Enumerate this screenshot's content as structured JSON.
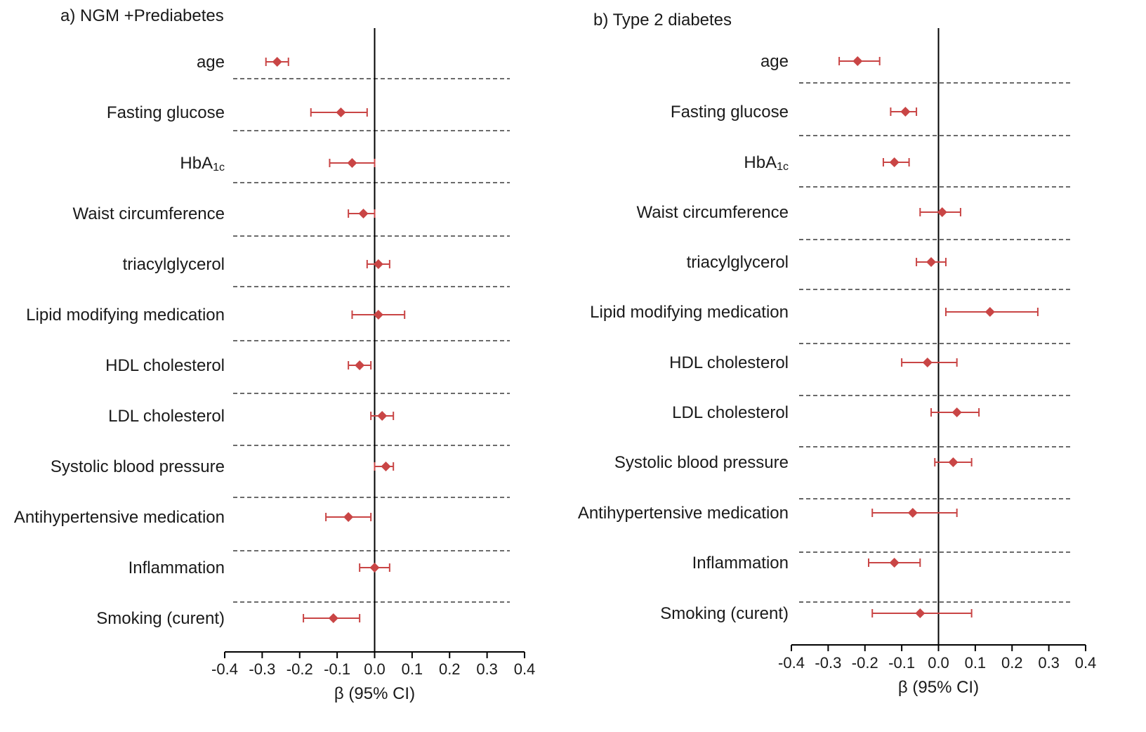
{
  "colors": {
    "marker": "#c94545",
    "axis": "#000000",
    "separator": "#3a3a3a",
    "text": "#1a1a1a"
  },
  "chart_data": [
    {
      "type": "forest",
      "title": "a) NGM +Prediabetes",
      "xlabel": "β (95% CI)",
      "xlim": [
        -0.4,
        0.4
      ],
      "xticks": [
        -0.4,
        -0.3,
        -0.2,
        -0.1,
        0.0,
        0.1,
        0.2,
        0.3,
        0.4
      ],
      "xtick_labels": [
        "-0.4",
        "-0.3",
        "-0.2",
        "-0.1",
        "0.0",
        "0.1",
        "0.2",
        "0.3",
        "0.4"
      ],
      "reference_line": 0,
      "rows": [
        {
          "label": "age",
          "beta": -0.26,
          "ci_low": -0.29,
          "ci_high": -0.23
        },
        {
          "label": "Fasting glucose",
          "beta": -0.09,
          "ci_low": -0.17,
          "ci_high": -0.02
        },
        {
          "label": "HbA",
          "label_sub": "1c",
          "beta": -0.06,
          "ci_low": -0.12,
          "ci_high": 0.0
        },
        {
          "label": "Waist circumference",
          "beta": -0.03,
          "ci_low": -0.07,
          "ci_high": 0.0
        },
        {
          "label": "triacylglycerol",
          "beta": 0.01,
          "ci_low": -0.02,
          "ci_high": 0.04
        },
        {
          "label": "Lipid modifying medication",
          "beta": 0.01,
          "ci_low": -0.06,
          "ci_high": 0.08
        },
        {
          "label": "HDL cholesterol",
          "beta": -0.04,
          "ci_low": -0.07,
          "ci_high": -0.01
        },
        {
          "label": "LDL cholesterol",
          "beta": 0.02,
          "ci_low": -0.01,
          "ci_high": 0.05
        },
        {
          "label": "Systolic blood pressure",
          "beta": 0.03,
          "ci_low": 0.0,
          "ci_high": 0.05
        },
        {
          "label": "Antihypertensive medication",
          "beta": -0.07,
          "ci_low": -0.13,
          "ci_high": -0.01
        },
        {
          "label": "Inflammation",
          "beta": 0.0,
          "ci_low": -0.04,
          "ci_high": 0.04
        },
        {
          "label": "Smoking (curent)",
          "beta": -0.11,
          "ci_low": -0.19,
          "ci_high": -0.04
        }
      ]
    },
    {
      "type": "forest",
      "title": "b) Type 2 diabetes",
      "xlabel": "β (95% CI)",
      "xlim": [
        -0.4,
        0.4
      ],
      "xticks": [
        -0.4,
        -0.3,
        -0.2,
        -0.1,
        0.0,
        0.1,
        0.2,
        0.3,
        0.4
      ],
      "xtick_labels": [
        "-0.4",
        "-0.3",
        "-0.2",
        "-0.1",
        "0.0",
        "0.1",
        "0.2",
        "0.3",
        "0.4"
      ],
      "reference_line": 0,
      "rows": [
        {
          "label": "age",
          "beta": -0.22,
          "ci_low": -0.27,
          "ci_high": -0.16
        },
        {
          "label": "Fasting glucose",
          "beta": -0.09,
          "ci_low": -0.13,
          "ci_high": -0.06
        },
        {
          "label": "HbA",
          "label_sub": "1c",
          "beta": -0.12,
          "ci_low": -0.15,
          "ci_high": -0.08
        },
        {
          "label": "Waist circumference",
          "beta": 0.01,
          "ci_low": -0.05,
          "ci_high": 0.06
        },
        {
          "label": "triacylglycerol",
          "beta": -0.02,
          "ci_low": -0.06,
          "ci_high": 0.02
        },
        {
          "label": "Lipid modifying medication",
          "beta": 0.14,
          "ci_low": 0.02,
          "ci_high": 0.27
        },
        {
          "label": "HDL cholesterol",
          "beta": -0.03,
          "ci_low": -0.1,
          "ci_high": 0.05
        },
        {
          "label": "LDL cholesterol",
          "beta": 0.05,
          "ci_low": -0.02,
          "ci_high": 0.11
        },
        {
          "label": "Systolic blood pressure",
          "beta": 0.04,
          "ci_low": -0.01,
          "ci_high": 0.09
        },
        {
          "label": "Antihypertensive medication",
          "beta": -0.07,
          "ci_low": -0.18,
          "ci_high": 0.05
        },
        {
          "label": "Inflammation",
          "beta": -0.12,
          "ci_low": -0.19,
          "ci_high": -0.05
        },
        {
          "label": "Smoking (curent)",
          "beta": -0.05,
          "ci_low": -0.18,
          "ci_high": 0.09
        }
      ]
    }
  ]
}
